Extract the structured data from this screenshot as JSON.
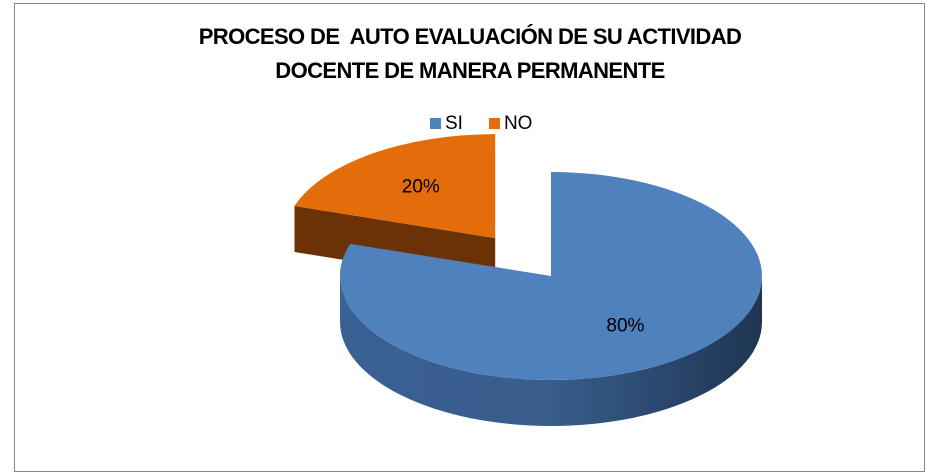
{
  "chart_data": {
    "type": "pie",
    "title": "PROCESO DE  AUTO EVALUACIÓN DE SU ACTIVIDAD DOCENTE DE MANERA PERMANENTE",
    "categories": [
      "SI",
      "NO"
    ],
    "values": [
      80,
      20
    ],
    "value_labels": [
      "80%",
      "20%"
    ],
    "colors": [
      "#4f81bd",
      "#e46c0a"
    ],
    "legend": "top"
  }
}
